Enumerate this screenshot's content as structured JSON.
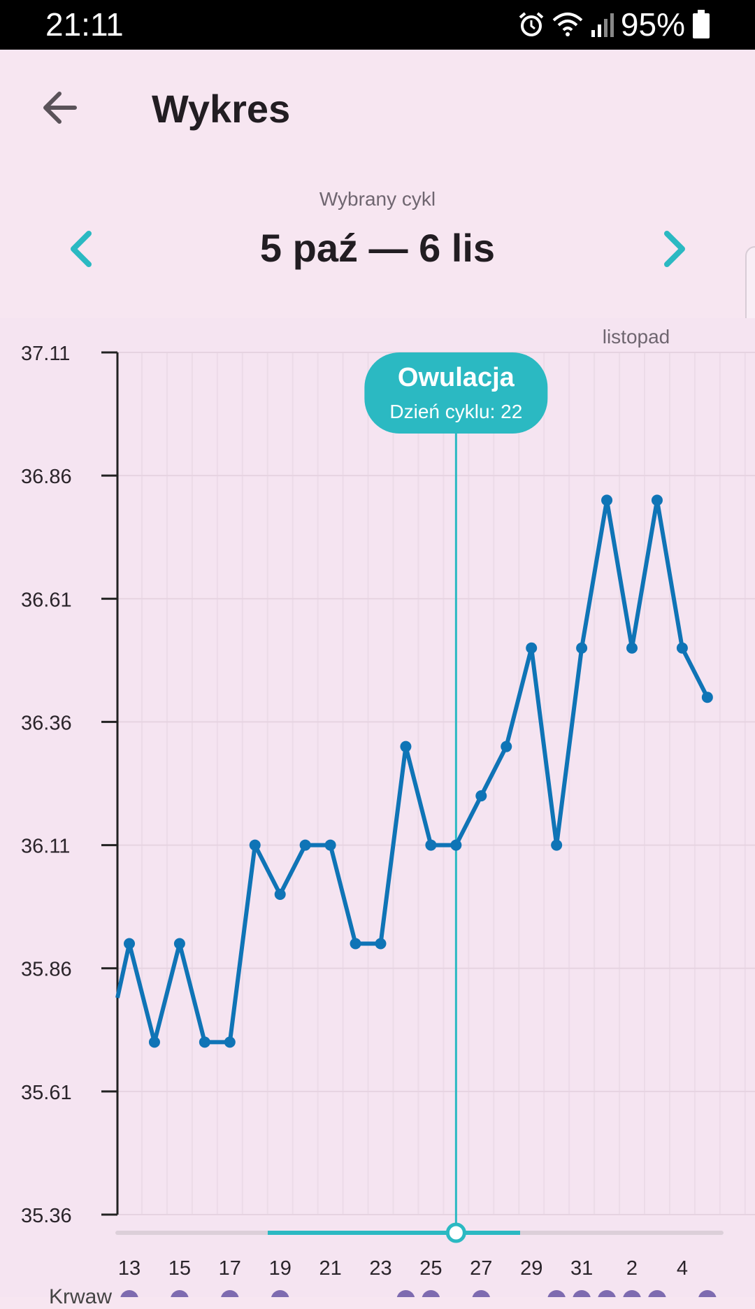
{
  "status_bar": {
    "time": "21:11",
    "battery": "95%",
    "icons": [
      "alarm-icon",
      "wifi-icon",
      "signal-icon",
      "battery-icon"
    ]
  },
  "header": {
    "title": "Wykres",
    "back_icon": "arrow-left-icon"
  },
  "cycle": {
    "label": "Wybrany cykl",
    "range": "5 paź — 6 lis",
    "prev_icon": "chevron-left-icon",
    "next_icon": "chevron-right-icon"
  },
  "colors": {
    "accent": "#2bb9c2",
    "line": "#0f74b6",
    "marker": "#7e6bb0",
    "background": "#f7e6f1"
  },
  "chart_data": {
    "type": "line",
    "month_label": "listopad",
    "ylim": [
      35.36,
      37.11
    ],
    "y_ticks": [
      "37.11",
      "36.86",
      "36.61",
      "36.36",
      "36.11",
      "35.86",
      "35.61",
      "35.36"
    ],
    "x_tick_labels": [
      "13",
      "15",
      "17",
      "19",
      "21",
      "23",
      "25",
      "27",
      "29",
      "31",
      "2",
      "4"
    ],
    "series": [
      {
        "x": [
          "13",
          "14",
          "15",
          "16",
          "17",
          "18",
          "19",
          "20",
          "21",
          "22",
          "23",
          "24",
          "25",
          "26",
          "27",
          "28",
          "29",
          "30",
          "31",
          "1",
          "2",
          "3",
          "4",
          "5"
        ],
        "values": [
          35.91,
          35.71,
          35.91,
          35.71,
          35.71,
          36.11,
          36.01,
          36.11,
          36.11,
          35.91,
          35.91,
          36.31,
          36.11,
          36.11,
          36.21,
          36.31,
          36.51,
          36.11,
          36.51,
          36.81,
          36.51,
          36.81,
          36.51,
          36.41
        ]
      }
    ],
    "annotation": {
      "title": "Owulacja",
      "subtitle": "Dzień cyklu: 22",
      "x": "26"
    },
    "grid": true
  },
  "bottom": {
    "label": "Krwaw"
  }
}
